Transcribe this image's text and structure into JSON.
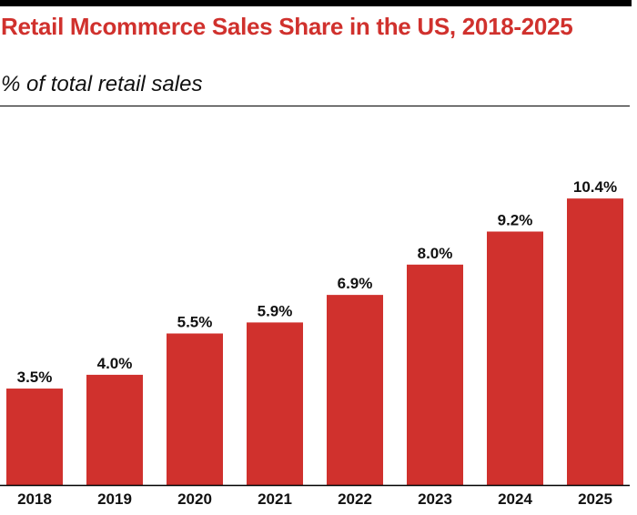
{
  "header": {
    "title": "Retail Mcommerce Sales Share in the US, 2018-2025",
    "subtitle": "% of total retail sales"
  },
  "colors": {
    "bar": "#d0312d",
    "title": "#d0312d",
    "text": "#111111",
    "axis": "#000000"
  },
  "chart_data": {
    "type": "bar",
    "title": "Retail Mcommerce Sales Share in the US, 2018-2025",
    "subtitle": "% of total retail sales",
    "xlabel": "",
    "ylabel": "",
    "categories": [
      "2018",
      "2019",
      "2020",
      "2021",
      "2022",
      "2023",
      "2024",
      "2025"
    ],
    "values": [
      3.5,
      4.0,
      5.5,
      5.9,
      6.9,
      8.0,
      9.2,
      10.4
    ],
    "data_labels": [
      "3.5%",
      "4.0%",
      "5.5%",
      "5.9%",
      "6.9%",
      "8.0%",
      "9.2%",
      "10.4%"
    ],
    "ylim": [
      0,
      11
    ],
    "grid": false,
    "legend": "none"
  }
}
